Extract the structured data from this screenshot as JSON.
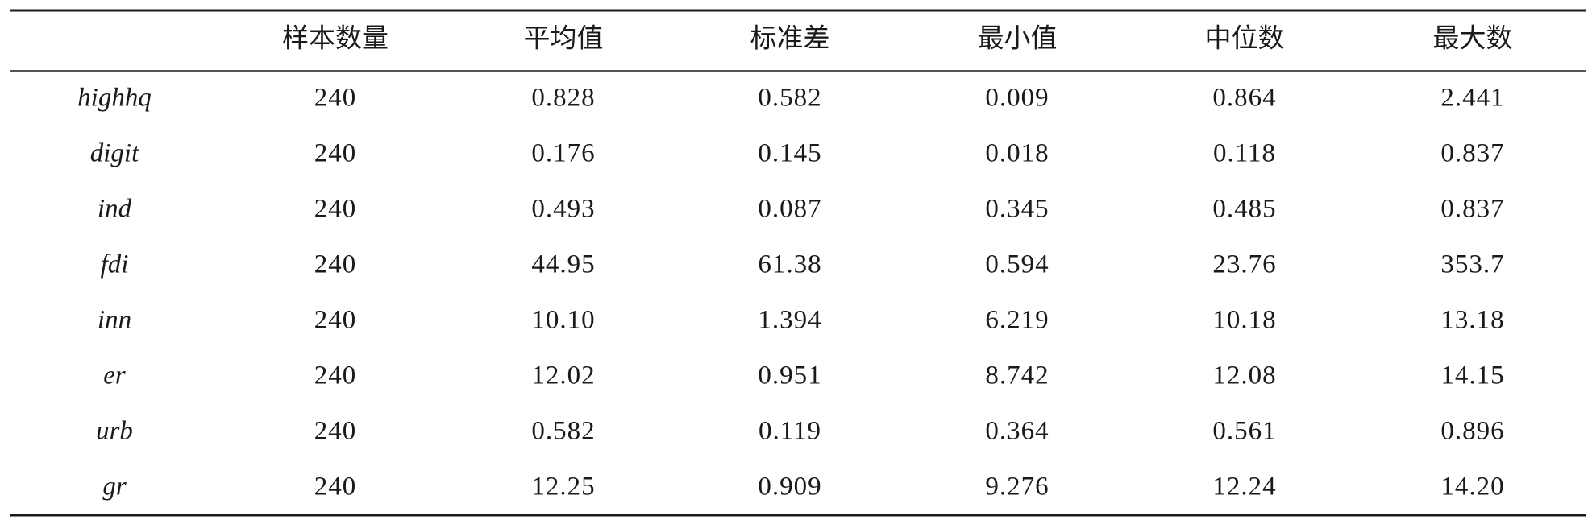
{
  "table": {
    "columns": [
      "样本数量",
      "平均值",
      "标准差",
      "最小值",
      "中位数",
      "最大数"
    ],
    "rows": [
      {
        "label": "highhq",
        "cells": [
          "240",
          "0.828",
          "0.582",
          "0.009",
          "0.864",
          "2.441"
        ]
      },
      {
        "label": "digit",
        "cells": [
          "240",
          "0.176",
          "0.145",
          "0.018",
          "0.118",
          "0.837"
        ]
      },
      {
        "label": "ind",
        "cells": [
          "240",
          "0.493",
          "0.087",
          "0.345",
          "0.485",
          "0.837"
        ]
      },
      {
        "label": "fdi",
        "cells": [
          "240",
          "44.95",
          "61.38",
          "0.594",
          "23.76",
          "353.7"
        ]
      },
      {
        "label": "inn",
        "cells": [
          "240",
          "10.10",
          "1.394",
          "6.219",
          "10.18",
          "13.18"
        ]
      },
      {
        "label": "er",
        "cells": [
          "240",
          "12.02",
          "0.951",
          "8.742",
          "12.08",
          "14.15"
        ]
      },
      {
        "label": "urb",
        "cells": [
          "240",
          "0.582",
          "0.119",
          "0.364",
          "0.561",
          "0.896"
        ]
      },
      {
        "label": "gr",
        "cells": [
          "240",
          "12.25",
          "0.909",
          "9.276",
          "12.24",
          "14.20"
        ]
      }
    ]
  }
}
